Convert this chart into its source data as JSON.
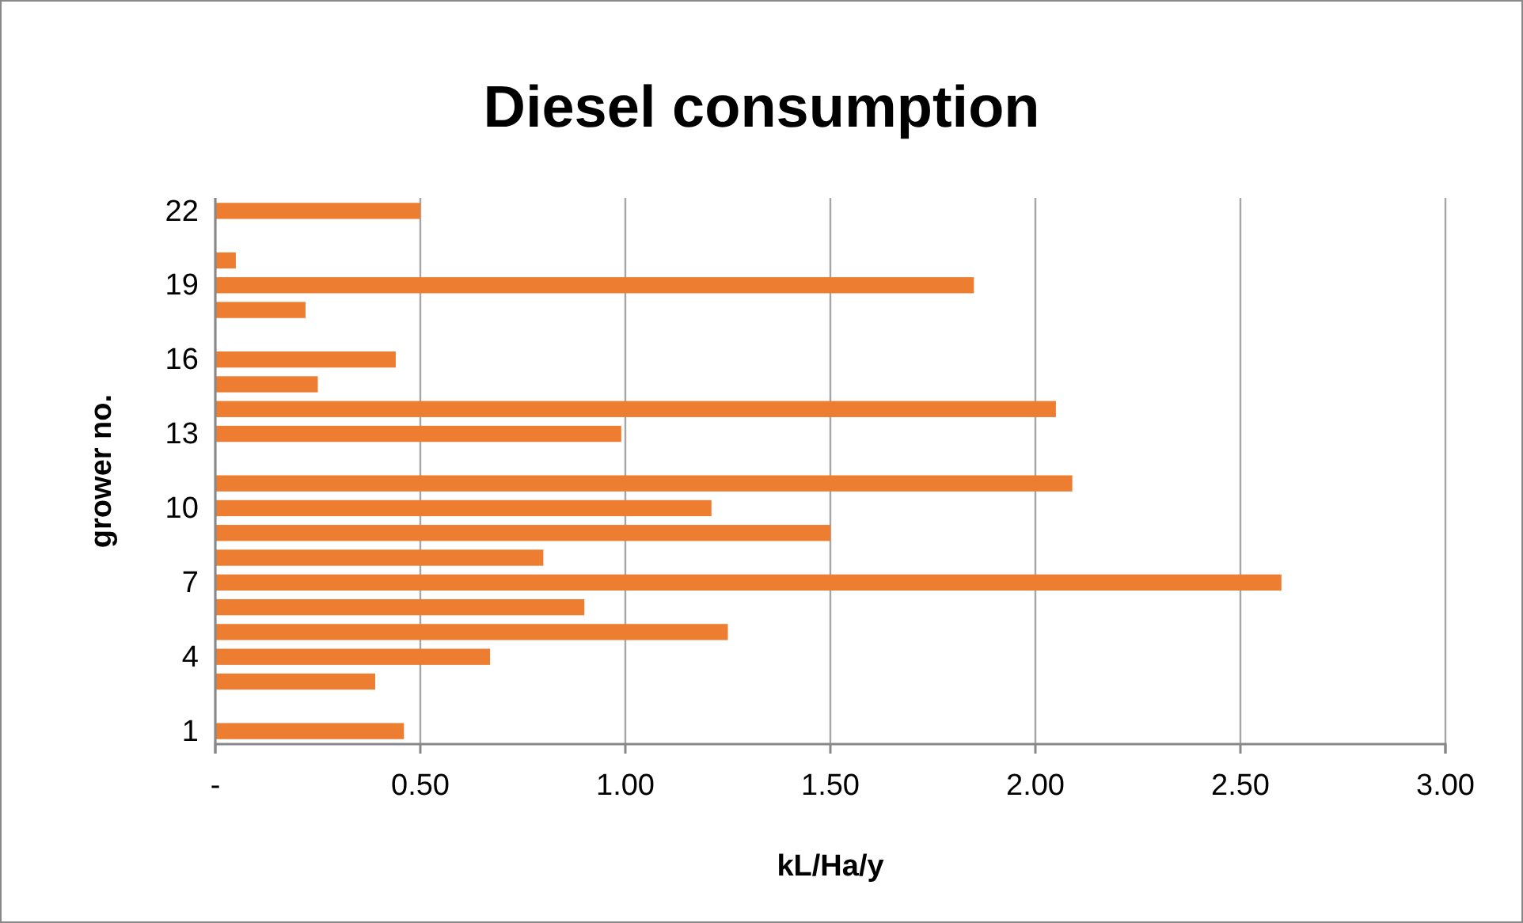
{
  "chart_data": {
    "type": "bar",
    "orientation": "horizontal",
    "title": "Diesel consumption",
    "xlabel": "kL/Ha/y",
    "ylabel": "grower no.",
    "categories": [
      "22",
      null,
      null,
      "19",
      null,
      null,
      "16",
      null,
      null,
      "13",
      null,
      null,
      "10",
      null,
      null,
      "7",
      null,
      null,
      "4",
      null,
      null,
      "1"
    ],
    "values": [
      0.5,
      null,
      0.05,
      1.85,
      0.22,
      null,
      0.44,
      0.25,
      2.05,
      0.99,
      null,
      2.09,
      1.21,
      1.5,
      0.8,
      2.6,
      0.9,
      1.25,
      0.67,
      0.39,
      null,
      0.46
    ],
    "color": "#ed7d31",
    "xlim": [
      0,
      3
    ],
    "xticks": [
      {
        "value": 0,
        "label": "-"
      },
      {
        "value": 0.5,
        "label": "0.50"
      },
      {
        "value": 1,
        "label": "1.00"
      },
      {
        "value": 1.5,
        "label": "1.50"
      },
      {
        "value": 2,
        "label": "2.00"
      },
      {
        "value": 2.5,
        "label": "2.50"
      },
      {
        "value": 3,
        "label": "3.00"
      }
    ],
    "grid": "x"
  }
}
